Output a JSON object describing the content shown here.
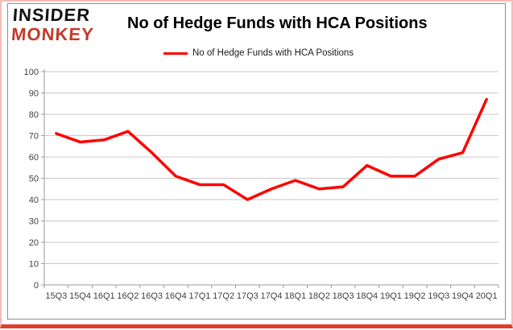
{
  "logo": {
    "line1": "INSIDER",
    "line2": "MONKEY"
  },
  "header": {
    "title": "No of Hedge Funds with HCA Positions"
  },
  "legend": {
    "label": "No of Hedge Funds with HCA Positions",
    "swatch_color": "#ff0000"
  },
  "colors": {
    "line": "#ff0000",
    "logo_red": "#c23a2b",
    "border_pink": "#f5bcb6",
    "border_bottom_red": "#e23e2e",
    "gridline": "#c9c9c9",
    "axis": "#9b9b9b",
    "tick_label": "#3f3f3f"
  },
  "chart_data": {
    "type": "line",
    "title": "No of Hedge Funds with HCA Positions",
    "legend_entries": [
      "No of Hedge Funds with HCA Positions"
    ],
    "legend_position": "top",
    "grid": true,
    "xlabel": "",
    "ylabel": "",
    "ylim": [
      0,
      100
    ],
    "ytick_step": 10,
    "categories": [
      "15Q3",
      "15Q4",
      "16Q1",
      "16Q2",
      "16Q3",
      "16Q4",
      "17Q1",
      "17Q2",
      "17Q3",
      "17Q4",
      "18Q1",
      "18Q2",
      "18Q3",
      "18Q4",
      "19Q1",
      "19Q2",
      "19Q3",
      "19Q4",
      "20Q1"
    ],
    "values": [
      71,
      67,
      68,
      72,
      62,
      51,
      47,
      47,
      40,
      45,
      49,
      45,
      46,
      56,
      51,
      51,
      59,
      62,
      87
    ]
  }
}
